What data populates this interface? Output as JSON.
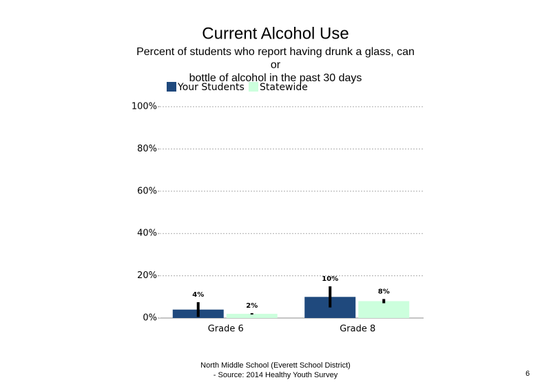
{
  "chart_data": {
    "type": "bar",
    "title": "Current Alcohol Use",
    "subtitle": [
      "Percent of students who report having drunk a glass, can",
      "or",
      "bottle of alcohol in the past 30 days"
    ],
    "categories": [
      "Grade 6",
      "Grade 8"
    ],
    "series": [
      {
        "name": "Your Students",
        "color": "#1f497d",
        "values": [
          4,
          10
        ],
        "value_labels": [
          "4%",
          "10%"
        ],
        "errors": [
          3.5,
          5
        ]
      },
      {
        "name": "Statewide",
        "color": "#ccffdd",
        "values": [
          2,
          8
        ],
        "value_labels": [
          "2%",
          "8%"
        ],
        "errors": [
          0.3,
          1
        ]
      }
    ],
    "ylim": [
      0,
      100
    ],
    "yticks": [
      {
        "value": 0,
        "label": "0%"
      },
      {
        "value": 20,
        "label": "20%"
      },
      {
        "value": 40,
        "label": "40%"
      },
      {
        "value": 60,
        "label": "60%"
      },
      {
        "value": 80,
        "label": "80%"
      },
      {
        "value": 100,
        "label": "100%"
      }
    ],
    "grid": true,
    "legend": "top-left",
    "footer": [
      "North Middle School (Everett School District)",
      "- Source: 2014 Healthy Youth Survey"
    ],
    "page_number": "6"
  }
}
